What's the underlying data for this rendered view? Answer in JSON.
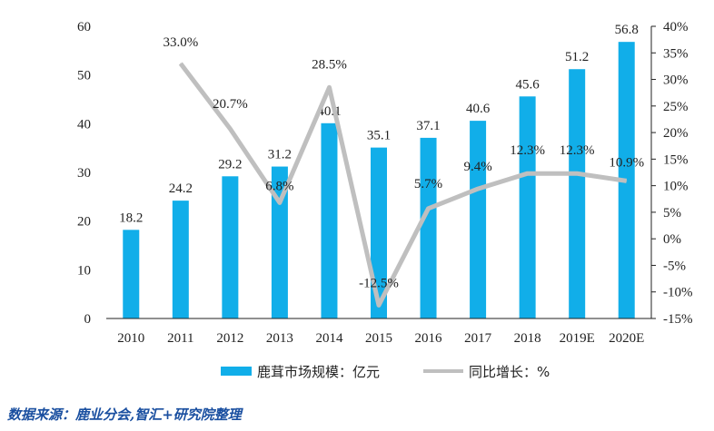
{
  "chart_data": {
    "type": "bar+line",
    "categories": [
      "2010",
      "2011",
      "2012",
      "2013",
      "2014",
      "2015",
      "2016",
      "2017",
      "2018",
      "2019E",
      "2020E"
    ],
    "series": [
      {
        "name": "鹿茸市场规模：亿元",
        "type": "bar",
        "axis": "left",
        "color": "#11aee9",
        "values": [
          18.2,
          24.2,
          29.2,
          31.2,
          40.1,
          35.1,
          37.1,
          40.6,
          45.6,
          51.2,
          56.8
        ],
        "labels": [
          "18.2",
          "24.2",
          "29.2",
          "31.2",
          "40.1",
          "35.1",
          "37.1",
          "40.6",
          "45.6",
          "51.2",
          "56.8"
        ]
      },
      {
        "name": "同比增长：%",
        "type": "line",
        "axis": "right",
        "color": "#bfbfbf",
        "values": [
          null,
          33.0,
          20.7,
          6.8,
          28.5,
          -12.5,
          5.7,
          9.4,
          12.3,
          12.3,
          10.9
        ],
        "labels": [
          "",
          "33.0%",
          "20.7%",
          "6.8%",
          "28.5%",
          "-12.5%",
          "5.7%",
          "9.4%",
          "12.3%",
          "12.3%",
          "10.9%"
        ]
      }
    ],
    "y_left": {
      "min": 0,
      "max": 60,
      "ticks": [
        "0",
        "10",
        "20",
        "30",
        "40",
        "50",
        "60"
      ]
    },
    "y_right": {
      "min": -15,
      "max": 40,
      "ticks": [
        "-15%",
        "-10%",
        "-5%",
        "0%",
        "5%",
        "10%",
        "15%",
        "20%",
        "25%",
        "30%",
        "35%",
        "40%"
      ]
    },
    "legend_position": "bottom",
    "grid": false
  },
  "source_text": "数据来源：鹿业分会,智汇+研究院整理"
}
